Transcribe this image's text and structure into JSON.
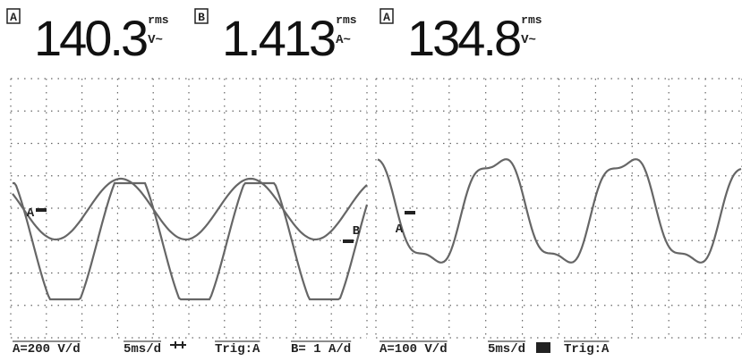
{
  "readouts": [
    {
      "channel": "A",
      "value": "140.3",
      "unit_top": "rms",
      "unit": "V~"
    },
    {
      "channel": "B",
      "value": "1.413",
      "unit_top": "rms",
      "unit": "A~"
    },
    {
      "channel": "A",
      "value": "134.8",
      "unit_top": "rms",
      "unit": "V~"
    }
  ],
  "panels": [
    {
      "markers": [
        "A",
        "B"
      ],
      "status": [
        "A=200 V/d",
        "5ms/d",
        "Trig:A",
        "B= 1 A/d"
      ]
    },
    {
      "markers": [
        "A"
      ],
      "status": [
        "A=100 V/d",
        "5ms/d",
        "Trig:A"
      ]
    }
  ]
}
